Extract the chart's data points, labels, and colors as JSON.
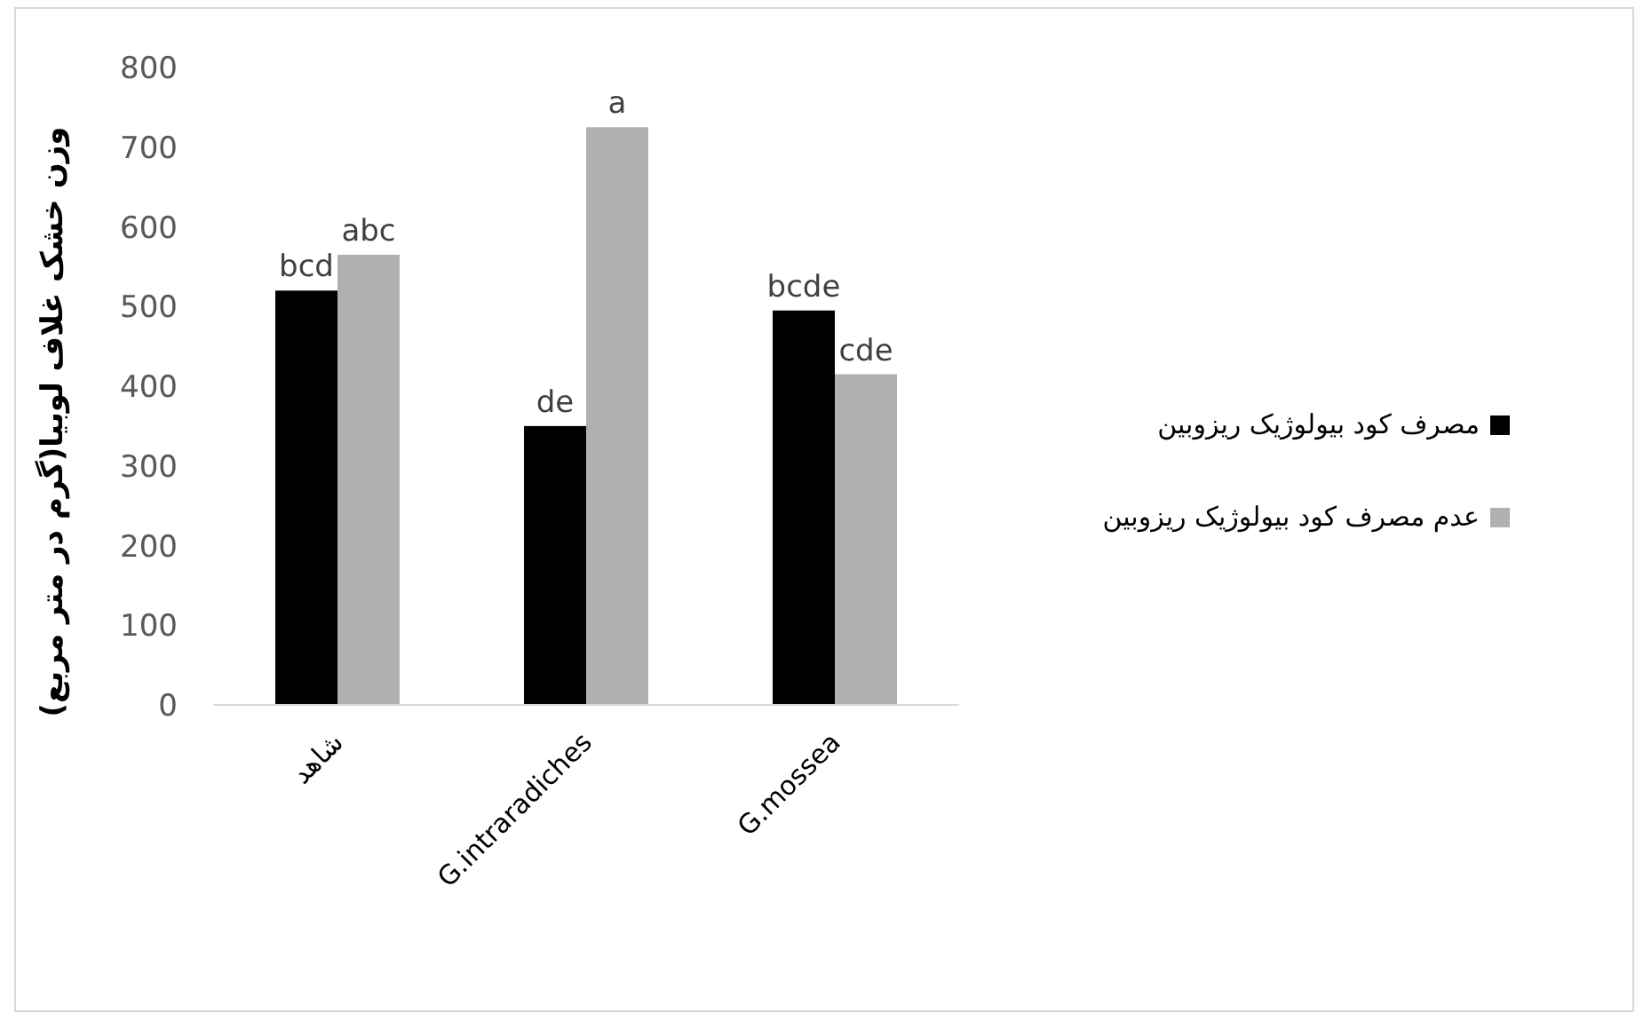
{
  "chart_data": {
    "type": "bar",
    "ylabel": "وزن خشک غلاف لوبیا(گرم در متر مربع)",
    "categories": [
      "شاهد",
      "G.intraradiches",
      "G.mossea"
    ],
    "series": [
      {
        "name": "مصرف کود بیولوژیک ریزوبین",
        "color": "#000000",
        "values": [
          520,
          350,
          495
        ]
      },
      {
        "name": "عدم مصرف کود بیولوژیک ریزوبین",
        "color": "#b0b0b0",
        "values": [
          565,
          725,
          415
        ]
      }
    ],
    "ylim": [
      0,
      800
    ],
    "yticks": [
      0,
      100,
      200,
      300,
      400,
      500,
      600,
      700,
      800
    ],
    "annotations": [
      {
        "text": "bcd",
        "x": "شاهد",
        "y": 520
      },
      {
        "text": "abc",
        "x": "شاهد",
        "y": 565
      },
      {
        "text": "de",
        "x": "G.intraradiches",
        "y": 350
      },
      {
        "text": "a",
        "x": "G.intraradiches",
        "y": 725
      },
      {
        "text": "bcde",
        "x": "G.mossea",
        "y": 495
      },
      {
        "text": "cde",
        "x": "G.mossea",
        "y": 415
      }
    ],
    "legend": "right"
  }
}
